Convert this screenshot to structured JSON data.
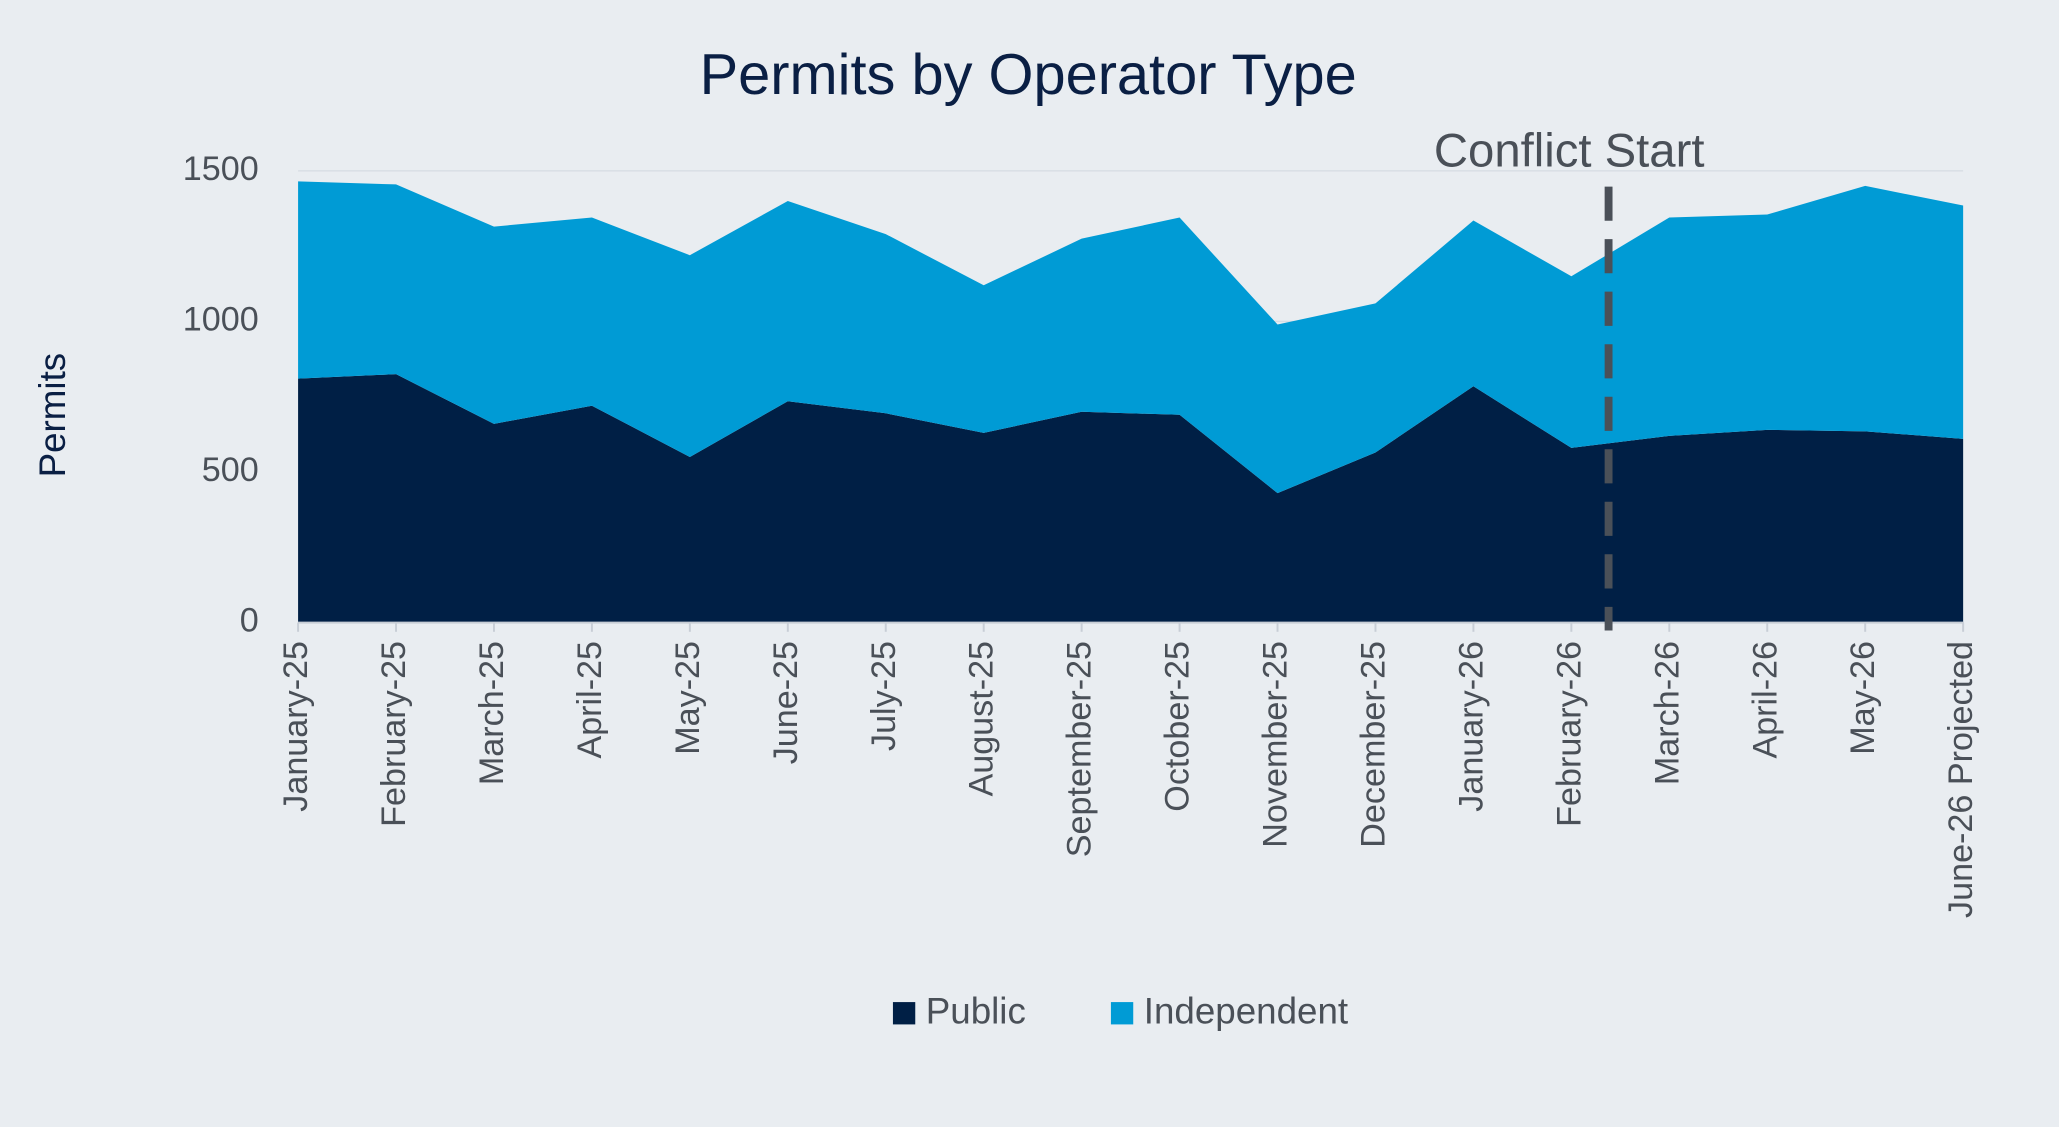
{
  "chart_data": {
    "type": "stacked_area",
    "title": "Permits by Operator Type",
    "y_label": "Permits",
    "categories": [
      "January-25",
      "February-25",
      "March-25",
      "April-25",
      "May-25",
      "June-25",
      "July-25",
      "August-25",
      "September-25",
      "October-25",
      "November-25",
      "December-25",
      "January-26",
      "February-26",
      "March-26",
      "April-26",
      "May-26",
      "June-26 Projected"
    ],
    "series": [
      {
        "name": "Public",
        "color": "#001f45",
        "values": [
          810,
          825,
          660,
          720,
          550,
          735,
          695,
          630,
          700,
          690,
          430,
          565,
          785,
          580,
          620,
          640,
          635,
          610
        ]
      },
      {
        "name": "Independent",
        "color": "#009bd5",
        "values": [
          655,
          630,
          655,
          625,
          670,
          665,
          595,
          490,
          575,
          655,
          560,
          495,
          550,
          570,
          725,
          715,
          815,
          775
        ]
      }
    ],
    "ylim": [
      0,
      1500
    ],
    "yticks": [
      0,
      500,
      1000,
      1500
    ],
    "grid": true,
    "legend": "bottom",
    "annotation": {
      "text": "Conflict Start",
      "color": "#4a5058"
    }
  }
}
